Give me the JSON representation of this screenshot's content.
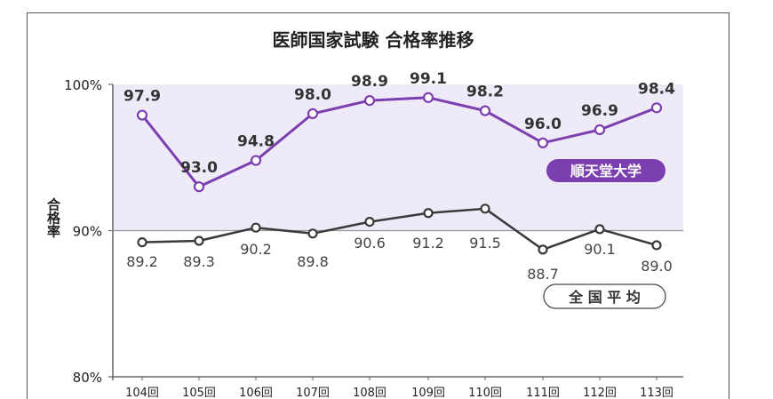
{
  "chart_data": {
    "type": "line",
    "title": "医師国家試験 合格率推移",
    "ylabel": "合格率",
    "xlabel": "",
    "categories": [
      "104回",
      "105回",
      "106回",
      "107回",
      "108回",
      "109回",
      "110回",
      "111回",
      "112回",
      "113回"
    ],
    "ylim": [
      80,
      100
    ],
    "yticks": [
      {
        "value": 100,
        "label": "100%"
      },
      {
        "value": 90,
        "label": "90%"
      },
      {
        "value": 80,
        "label": "80%"
      }
    ],
    "highlight_band": [
      90,
      100
    ],
    "grid": false,
    "series": [
      {
        "name": "順天堂大学",
        "values": [
          97.9,
          93.0,
          94.8,
          98.0,
          98.9,
          99.1,
          98.2,
          96.0,
          96.9,
          98.4
        ],
        "labels": [
          "97.9",
          "93.0",
          "94.8",
          "98.0",
          "98.9",
          "99.1",
          "98.2",
          "96.0",
          "96.9",
          "98.4"
        ]
      },
      {
        "name": "全 国 平 均",
        "values": [
          89.2,
          89.3,
          90.2,
          89.8,
          90.6,
          91.2,
          91.5,
          88.7,
          90.1,
          89.0
        ],
        "labels": [
          "89.2",
          "89.3",
          "90.2",
          "89.8",
          "90.6",
          "91.2",
          "91.5",
          "88.7",
          "90.1",
          "89.0"
        ]
      }
    ],
    "colors": {
      "juntendo": "#7b3fb0",
      "national": "#3a3a3a",
      "band": "#efeaf7",
      "frame": "#555555"
    }
  }
}
